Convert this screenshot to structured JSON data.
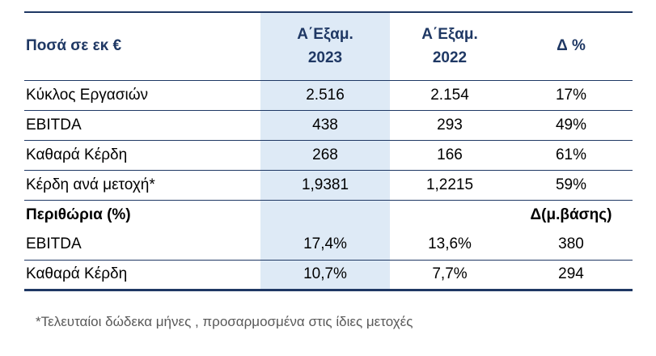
{
  "table": {
    "header": {
      "units_label": "Ποσά σε εκ €",
      "col_2023_line1": "Α΄Εξαμ.",
      "col_2023_line2": "2023",
      "col_2022_line1": "Α΄Εξαμ.",
      "col_2022_line2": "2022",
      "delta_label": "Δ %"
    },
    "rows": [
      {
        "label": "Κύκλος Εργασιών",
        "h1_2023": "2.516",
        "h1_2022": "2.154",
        "delta": "17%"
      },
      {
        "label": "EBITDA",
        "h1_2023": "438",
        "h1_2022": "293",
        "delta": "49%"
      },
      {
        "label": "Καθαρά Κέρδη",
        "h1_2023": "268",
        "h1_2022": "166",
        "delta": "61%"
      },
      {
        "label": "Κέρδη ανά μετοχή*",
        "h1_2023": "1,9381",
        "h1_2022": "1,2215",
        "delta": "59%"
      },
      {
        "label": "Περιθώρια (%)",
        "h1_2023": "",
        "h1_2022": "",
        "delta": "Δ(μ.βάσης)"
      },
      {
        "label": "EBITDA",
        "h1_2023": "17,4%",
        "h1_2022": "13,6%",
        "delta": "380"
      },
      {
        "label": "Καθαρά Κέρδη",
        "h1_2023": "10,7%",
        "h1_2022": "7,7%",
        "delta": "294"
      }
    ],
    "footnote": "*Τελευταίοι δώδεκα μήνες , προσαρμοσμένα στις ίδιες μετοχές"
  },
  "colors": {
    "header_text": "#1F3864",
    "table_border": "#1F3864",
    "highlight_column_bg": "#DEEAF6",
    "footnote_text": "#595959"
  }
}
